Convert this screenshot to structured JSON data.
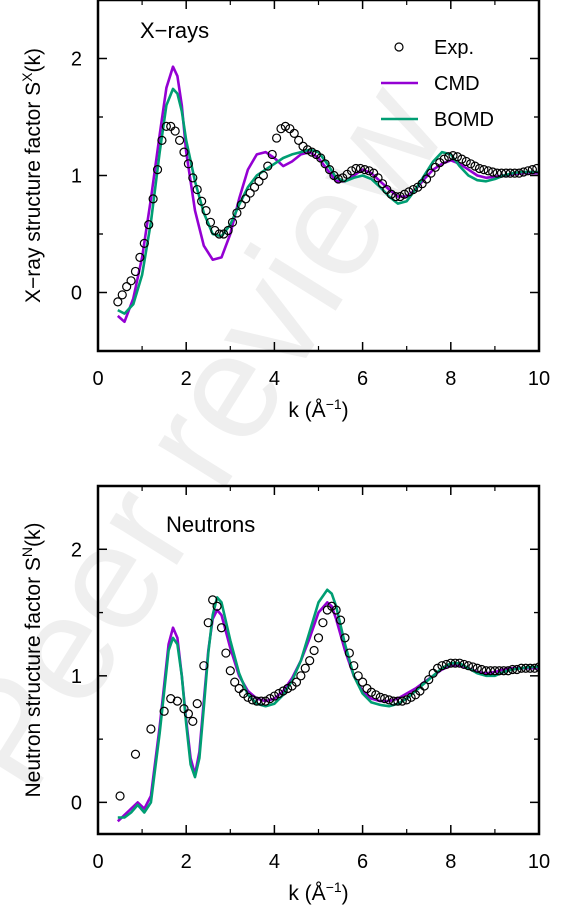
{
  "watermark": "Peer review",
  "colors": {
    "cmd": "#9400d3",
    "bomd": "#009e73",
    "exp": "#000000",
    "axis": "#000000"
  },
  "chart_data": [
    {
      "type": "line",
      "title": "X−rays",
      "xlabel": {
        "base": "k (Å",
        "sup": "−1",
        "tail": ")"
      },
      "ylabel": {
        "base": "X−ray structure factor S",
        "sup": "X",
        "tail": "(k)"
      },
      "xlim": [
        0,
        10
      ],
      "ylim": [
        -0.5,
        2.5
      ],
      "xticks": [
        0,
        2,
        4,
        6,
        8,
        10
      ],
      "yticks": [
        0,
        1,
        2
      ],
      "grid": false,
      "legend_position": "top-right",
      "legend": [
        "Exp.",
        "CMD",
        "BOMD"
      ],
      "series": [
        {
          "name": "CMD",
          "style": "line",
          "color": "#9400d3",
          "x": [
            0.45,
            0.6,
            0.8,
            1.0,
            1.2,
            1.4,
            1.55,
            1.7,
            1.8,
            1.9,
            2.0,
            2.2,
            2.4,
            2.6,
            2.8,
            3.0,
            3.2,
            3.4,
            3.6,
            3.8,
            4.0,
            4.2,
            4.4,
            4.6,
            4.8,
            5.0,
            5.2,
            5.4,
            5.6,
            5.8,
            6.0,
            6.2,
            6.4,
            6.6,
            6.8,
            7.0,
            7.2,
            7.4,
            7.6,
            7.8,
            8.0,
            8.2,
            8.4,
            8.6,
            8.8,
            9.0,
            9.2,
            9.4,
            9.6,
            9.8,
            10.0
          ],
          "y": [
            -0.2,
            -0.25,
            -0.05,
            0.3,
            0.8,
            1.35,
            1.75,
            1.93,
            1.85,
            1.6,
            1.2,
            0.7,
            0.4,
            0.28,
            0.3,
            0.5,
            0.8,
            1.05,
            1.18,
            1.2,
            1.15,
            1.08,
            1.12,
            1.18,
            1.2,
            1.15,
            1.05,
            0.95,
            0.95,
            1.0,
            1.05,
            1.02,
            0.95,
            0.88,
            0.82,
            0.82,
            0.88,
            0.97,
            1.05,
            1.1,
            1.13,
            1.1,
            1.05,
            1.0,
            0.98,
            0.99,
            1.0,
            1.01,
            1.02,
            1.02,
            1.02
          ]
        },
        {
          "name": "BOMD",
          "style": "line",
          "color": "#009e73",
          "x": [
            0.45,
            0.6,
            0.8,
            1.0,
            1.2,
            1.4,
            1.55,
            1.7,
            1.8,
            1.9,
            2.0,
            2.2,
            2.4,
            2.6,
            2.8,
            3.0,
            3.2,
            3.4,
            3.6,
            3.8,
            4.0,
            4.2,
            4.4,
            4.6,
            4.8,
            5.0,
            5.2,
            5.4,
            5.6,
            5.8,
            6.0,
            6.2,
            6.4,
            6.6,
            6.8,
            7.0,
            7.2,
            7.4,
            7.6,
            7.8,
            8.0,
            8.2,
            8.4,
            8.6,
            8.8,
            9.0,
            9.2,
            9.4,
            9.6,
            9.8,
            10.0
          ],
          "y": [
            -0.15,
            -0.18,
            -0.1,
            0.15,
            0.6,
            1.2,
            1.6,
            1.74,
            1.7,
            1.55,
            1.3,
            0.95,
            0.68,
            0.5,
            0.48,
            0.58,
            0.75,
            0.9,
            1.0,
            1.05,
            1.1,
            1.15,
            1.18,
            1.2,
            1.22,
            1.2,
            1.1,
            0.98,
            0.95,
            0.98,
            1.0,
            0.97,
            0.9,
            0.82,
            0.76,
            0.78,
            0.88,
            1.0,
            1.12,
            1.2,
            1.18,
            1.08,
            1.0,
            0.96,
            0.95,
            0.97,
            1.0,
            1.02,
            1.03,
            1.03,
            1.03
          ]
        },
        {
          "name": "Exp.",
          "style": "markers",
          "color": "#000000",
          "x": [
            0.45,
            0.55,
            0.65,
            0.75,
            0.85,
            0.95,
            1.05,
            1.15,
            1.25,
            1.35,
            1.45,
            1.55,
            1.65,
            1.75,
            1.85,
            1.95,
            2.05,
            2.15,
            2.25,
            2.35,
            2.45,
            2.55,
            2.65,
            2.75,
            2.85,
            2.95,
            3.05,
            3.15,
            3.25,
            3.35,
            3.45,
            3.55,
            3.65,
            3.75,
            3.85,
            3.95,
            4.05,
            4.15,
            4.25,
            4.35,
            4.45,
            4.55,
            4.65,
            4.75,
            4.85,
            4.95,
            5.05,
            5.15,
            5.25,
            5.35,
            5.45,
            5.55,
            5.65,
            5.75,
            5.85,
            5.95,
            6.05,
            6.15,
            6.25,
            6.35,
            6.45,
            6.55,
            6.65,
            6.75,
            6.85,
            6.95,
            7.05,
            7.15,
            7.25,
            7.35,
            7.45,
            7.55,
            7.65,
            7.75,
            7.85,
            7.95,
            8.05,
            8.15,
            8.25,
            8.35,
            8.45,
            8.55,
            8.65,
            8.75,
            8.85,
            8.95,
            9.05,
            9.15,
            9.25,
            9.35,
            9.45,
            9.55,
            9.65,
            9.75,
            9.85,
            9.95
          ],
          "y": [
            -0.08,
            -0.02,
            0.05,
            0.1,
            0.18,
            0.3,
            0.42,
            0.58,
            0.8,
            1.05,
            1.3,
            1.42,
            1.42,
            1.38,
            1.3,
            1.2,
            1.1,
            0.98,
            0.88,
            0.78,
            0.7,
            0.6,
            0.53,
            0.5,
            0.5,
            0.53,
            0.6,
            0.68,
            0.75,
            0.8,
            0.85,
            0.9,
            0.95,
            1.0,
            1.08,
            1.18,
            1.32,
            1.4,
            1.42,
            1.4,
            1.36,
            1.3,
            1.25,
            1.22,
            1.2,
            1.18,
            1.15,
            1.1,
            1.05,
            1.0,
            0.97,
            0.98,
            1.01,
            1.04,
            1.06,
            1.06,
            1.05,
            1.04,
            1.02,
            0.98,
            0.93,
            0.88,
            0.84,
            0.82,
            0.82,
            0.84,
            0.86,
            0.88,
            0.9,
            0.93,
            0.97,
            1.02,
            1.07,
            1.11,
            1.14,
            1.16,
            1.17,
            1.16,
            1.14,
            1.12,
            1.1,
            1.08,
            1.06,
            1.05,
            1.04,
            1.03,
            1.02,
            1.02,
            1.02,
            1.02,
            1.02,
            1.02,
            1.03,
            1.04,
            1.05,
            1.06
          ]
        }
      ]
    },
    {
      "type": "line",
      "title": "Neutrons",
      "xlabel": {
        "base": "k (Å",
        "sup": "−1",
        "tail": ")"
      },
      "ylabel": {
        "base": "Neutron structure factor S",
        "sup": "N",
        "tail": "(k)"
      },
      "xlim": [
        0,
        10
      ],
      "ylim": [
        -0.25,
        2.5
      ],
      "xticks": [
        0,
        2,
        4,
        6,
        8,
        10
      ],
      "yticks": [
        0,
        1,
        2
      ],
      "grid": false,
      "series": [
        {
          "name": "CMD",
          "style": "line",
          "color": "#9400d3",
          "x": [
            0.45,
            0.6,
            0.75,
            0.9,
            1.05,
            1.2,
            1.4,
            1.6,
            1.7,
            1.8,
            1.9,
            2.0,
            2.1,
            2.2,
            2.3,
            2.4,
            2.5,
            2.6,
            2.7,
            2.8,
            3.0,
            3.2,
            3.4,
            3.6,
            3.8,
            4.0,
            4.2,
            4.4,
            4.6,
            4.8,
            5.0,
            5.2,
            5.3,
            5.4,
            5.6,
            5.8,
            6.0,
            6.2,
            6.4,
            6.6,
            6.8,
            7.0,
            7.2,
            7.4,
            7.6,
            7.8,
            8.0,
            8.2,
            8.4,
            8.6,
            8.8,
            9.0,
            9.2,
            9.4,
            9.6,
            9.8,
            10.0
          ],
          "y": [
            -0.15,
            -0.1,
            -0.05,
            0.0,
            -0.05,
            0.05,
            0.6,
            1.25,
            1.38,
            1.3,
            1.0,
            0.65,
            0.35,
            0.22,
            0.4,
            0.8,
            1.2,
            1.45,
            1.52,
            1.48,
            1.22,
            1.0,
            0.88,
            0.82,
            0.8,
            0.82,
            0.88,
            0.98,
            1.12,
            1.3,
            1.5,
            1.58,
            1.55,
            1.45,
            1.2,
            1.0,
            0.88,
            0.82,
            0.8,
            0.8,
            0.82,
            0.86,
            0.9,
            0.95,
            1.0,
            1.05,
            1.08,
            1.08,
            1.06,
            1.03,
            1.02,
            1.03,
            1.05,
            1.06,
            1.06,
            1.06,
            1.06
          ]
        },
        {
          "name": "BOMD",
          "style": "line",
          "color": "#009e73",
          "x": [
            0.45,
            0.6,
            0.75,
            0.9,
            1.05,
            1.2,
            1.4,
            1.6,
            1.7,
            1.8,
            1.9,
            2.0,
            2.1,
            2.2,
            2.3,
            2.4,
            2.5,
            2.6,
            2.7,
            2.8,
            3.0,
            3.2,
            3.4,
            3.6,
            3.8,
            4.0,
            4.2,
            4.4,
            4.6,
            4.8,
            5.0,
            5.2,
            5.3,
            5.4,
            5.6,
            5.8,
            6.0,
            6.2,
            6.4,
            6.6,
            6.8,
            7.0,
            7.2,
            7.4,
            7.6,
            7.8,
            8.0,
            8.2,
            8.4,
            8.6,
            8.8,
            9.0,
            9.2,
            9.4,
            9.6,
            9.8,
            10.0
          ],
          "y": [
            -0.12,
            -0.12,
            -0.08,
            -0.02,
            -0.08,
            0.0,
            0.55,
            1.2,
            1.3,
            1.25,
            1.0,
            0.62,
            0.3,
            0.2,
            0.35,
            0.75,
            1.18,
            1.48,
            1.62,
            1.58,
            1.28,
            1.02,
            0.85,
            0.78,
            0.76,
            0.78,
            0.85,
            0.96,
            1.12,
            1.35,
            1.58,
            1.68,
            1.65,
            1.55,
            1.25,
            1.0,
            0.86,
            0.79,
            0.77,
            0.76,
            0.78,
            0.82,
            0.88,
            0.94,
            1.0,
            1.06,
            1.1,
            1.1,
            1.06,
            1.02,
            1.0,
            1.0,
            1.03,
            1.05,
            1.06,
            1.07,
            1.07
          ]
        },
        {
          "name": "Exp.",
          "style": "markers",
          "color": "#000000",
          "x": [
            0.5,
            0.85,
            1.2,
            1.5,
            1.65,
            1.8,
            1.95,
            2.05,
            2.15,
            2.25,
            2.4,
            2.5,
            2.6,
            2.7,
            2.8,
            2.9,
            3.0,
            3.1,
            3.2,
            3.3,
            3.4,
            3.5,
            3.6,
            3.7,
            3.8,
            3.9,
            4.0,
            4.1,
            4.2,
            4.3,
            4.4,
            4.5,
            4.6,
            4.7,
            4.8,
            4.9,
            5.0,
            5.1,
            5.2,
            5.3,
            5.4,
            5.5,
            5.6,
            5.7,
            5.8,
            5.9,
            6.0,
            6.1,
            6.2,
            6.3,
            6.4,
            6.5,
            6.6,
            6.7,
            6.8,
            6.9,
            7.0,
            7.1,
            7.2,
            7.3,
            7.4,
            7.5,
            7.6,
            7.7,
            7.8,
            7.9,
            8.0,
            8.1,
            8.2,
            8.3,
            8.4,
            8.5,
            8.6,
            8.7,
            8.8,
            8.9,
            9.0,
            9.1,
            9.2,
            9.3,
            9.4,
            9.5,
            9.6,
            9.7,
            9.8,
            9.9,
            10.0
          ],
          "y": [
            0.05,
            0.38,
            0.58,
            0.72,
            0.82,
            0.8,
            0.74,
            0.7,
            0.64,
            0.78,
            1.08,
            1.42,
            1.6,
            1.55,
            1.38,
            1.18,
            1.04,
            0.95,
            0.9,
            0.86,
            0.83,
            0.81,
            0.8,
            0.8,
            0.8,
            0.82,
            0.84,
            0.86,
            0.88,
            0.9,
            0.92,
            0.95,
            1.0,
            1.06,
            1.12,
            1.2,
            1.3,
            1.42,
            1.52,
            1.55,
            1.52,
            1.44,
            1.3,
            1.18,
            1.08,
            1.0,
            0.95,
            0.9,
            0.87,
            0.85,
            0.83,
            0.82,
            0.81,
            0.8,
            0.8,
            0.8,
            0.81,
            0.83,
            0.85,
            0.88,
            0.92,
            0.97,
            1.02,
            1.06,
            1.08,
            1.09,
            1.1,
            1.1,
            1.1,
            1.09,
            1.08,
            1.07,
            1.06,
            1.05,
            1.04,
            1.04,
            1.04,
            1.04,
            1.04,
            1.04,
            1.05,
            1.05,
            1.06,
            1.06,
            1.06,
            1.06,
            1.07
          ]
        }
      ]
    }
  ]
}
